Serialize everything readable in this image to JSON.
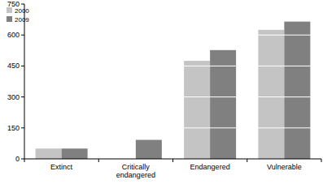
{
  "chart_data": {
    "type": "bar",
    "categories": [
      "Extinct",
      "Critically endangered",
      "Endangered",
      "Vulnerable"
    ],
    "series": [
      {
        "name": "2000",
        "color": "#c4c4c4",
        "values": [
          50,
          null,
          475,
          625
        ]
      },
      {
        "name": "2009",
        "color": "#808080",
        "values": [
          50,
          92,
          527,
          665
        ]
      }
    ],
    "ylim": [
      0,
      750
    ],
    "yticks": [
      0,
      150,
      300,
      450,
      600,
      750
    ],
    "grid": true,
    "legend": "top-left"
  }
}
